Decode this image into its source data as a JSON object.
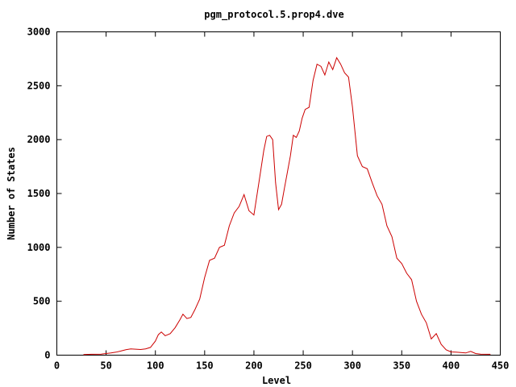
{
  "chart_data": {
    "type": "line",
    "title": "pgm_protocol.5.prop4.dve",
    "xlabel": "Level",
    "ylabel": "Number of States",
    "xlim": [
      0,
      450
    ],
    "ylim": [
      0,
      3000
    ],
    "x_ticks": [
      0,
      50,
      100,
      150,
      200,
      250,
      300,
      350,
      400,
      450
    ],
    "y_ticks": [
      0,
      500,
      1000,
      1500,
      2000,
      2500,
      3000
    ],
    "grid": false,
    "legend": "none",
    "series": [
      {
        "color": "#cc0000",
        "x": [
          27,
          35,
          45,
          50,
          55,
          60,
          65,
          70,
          75,
          80,
          85,
          90,
          95,
          100,
          103,
          106,
          110,
          115,
          120,
          125,
          128,
          132,
          136,
          140,
          145,
          150,
          155,
          160,
          165,
          170,
          175,
          180,
          185,
          190,
          195,
          200,
          205,
          210,
          213,
          216,
          219,
          222,
          225,
          228,
          231,
          234,
          237,
          240,
          243,
          246,
          249,
          252,
          256,
          260,
          264,
          268,
          272,
          276,
          280,
          284,
          288,
          292,
          296,
          300,
          305,
          310,
          315,
          320,
          325,
          330,
          335,
          340,
          345,
          350,
          355,
          360,
          365,
          370,
          375,
          380,
          385,
          390,
          395,
          400,
          405,
          410,
          415,
          420,
          425,
          430,
          440
        ],
        "y": [
          5,
          8,
          10,
          15,
          20,
          28,
          38,
          50,
          58,
          55,
          52,
          58,
          72,
          130,
          190,
          215,
          180,
          200,
          255,
          330,
          380,
          340,
          350,
          420,
          520,
          720,
          880,
          900,
          1000,
          1020,
          1200,
          1320,
          1380,
          1490,
          1340,
          1300,
          1600,
          1900,
          2030,
          2040,
          2000,
          1600,
          1350,
          1400,
          1550,
          1700,
          1850,
          2040,
          2020,
          2080,
          2200,
          2280,
          2300,
          2550,
          2700,
          2680,
          2600,
          2720,
          2650,
          2760,
          2700,
          2620,
          2580,
          2300,
          1850,
          1750,
          1730,
          1600,
          1480,
          1400,
          1200,
          1100,
          900,
          850,
          760,
          700,
          500,
          380,
          300,
          150,
          200,
          100,
          50,
          30,
          28,
          25,
          20,
          35,
          15,
          10,
          8
        ]
      }
    ]
  }
}
